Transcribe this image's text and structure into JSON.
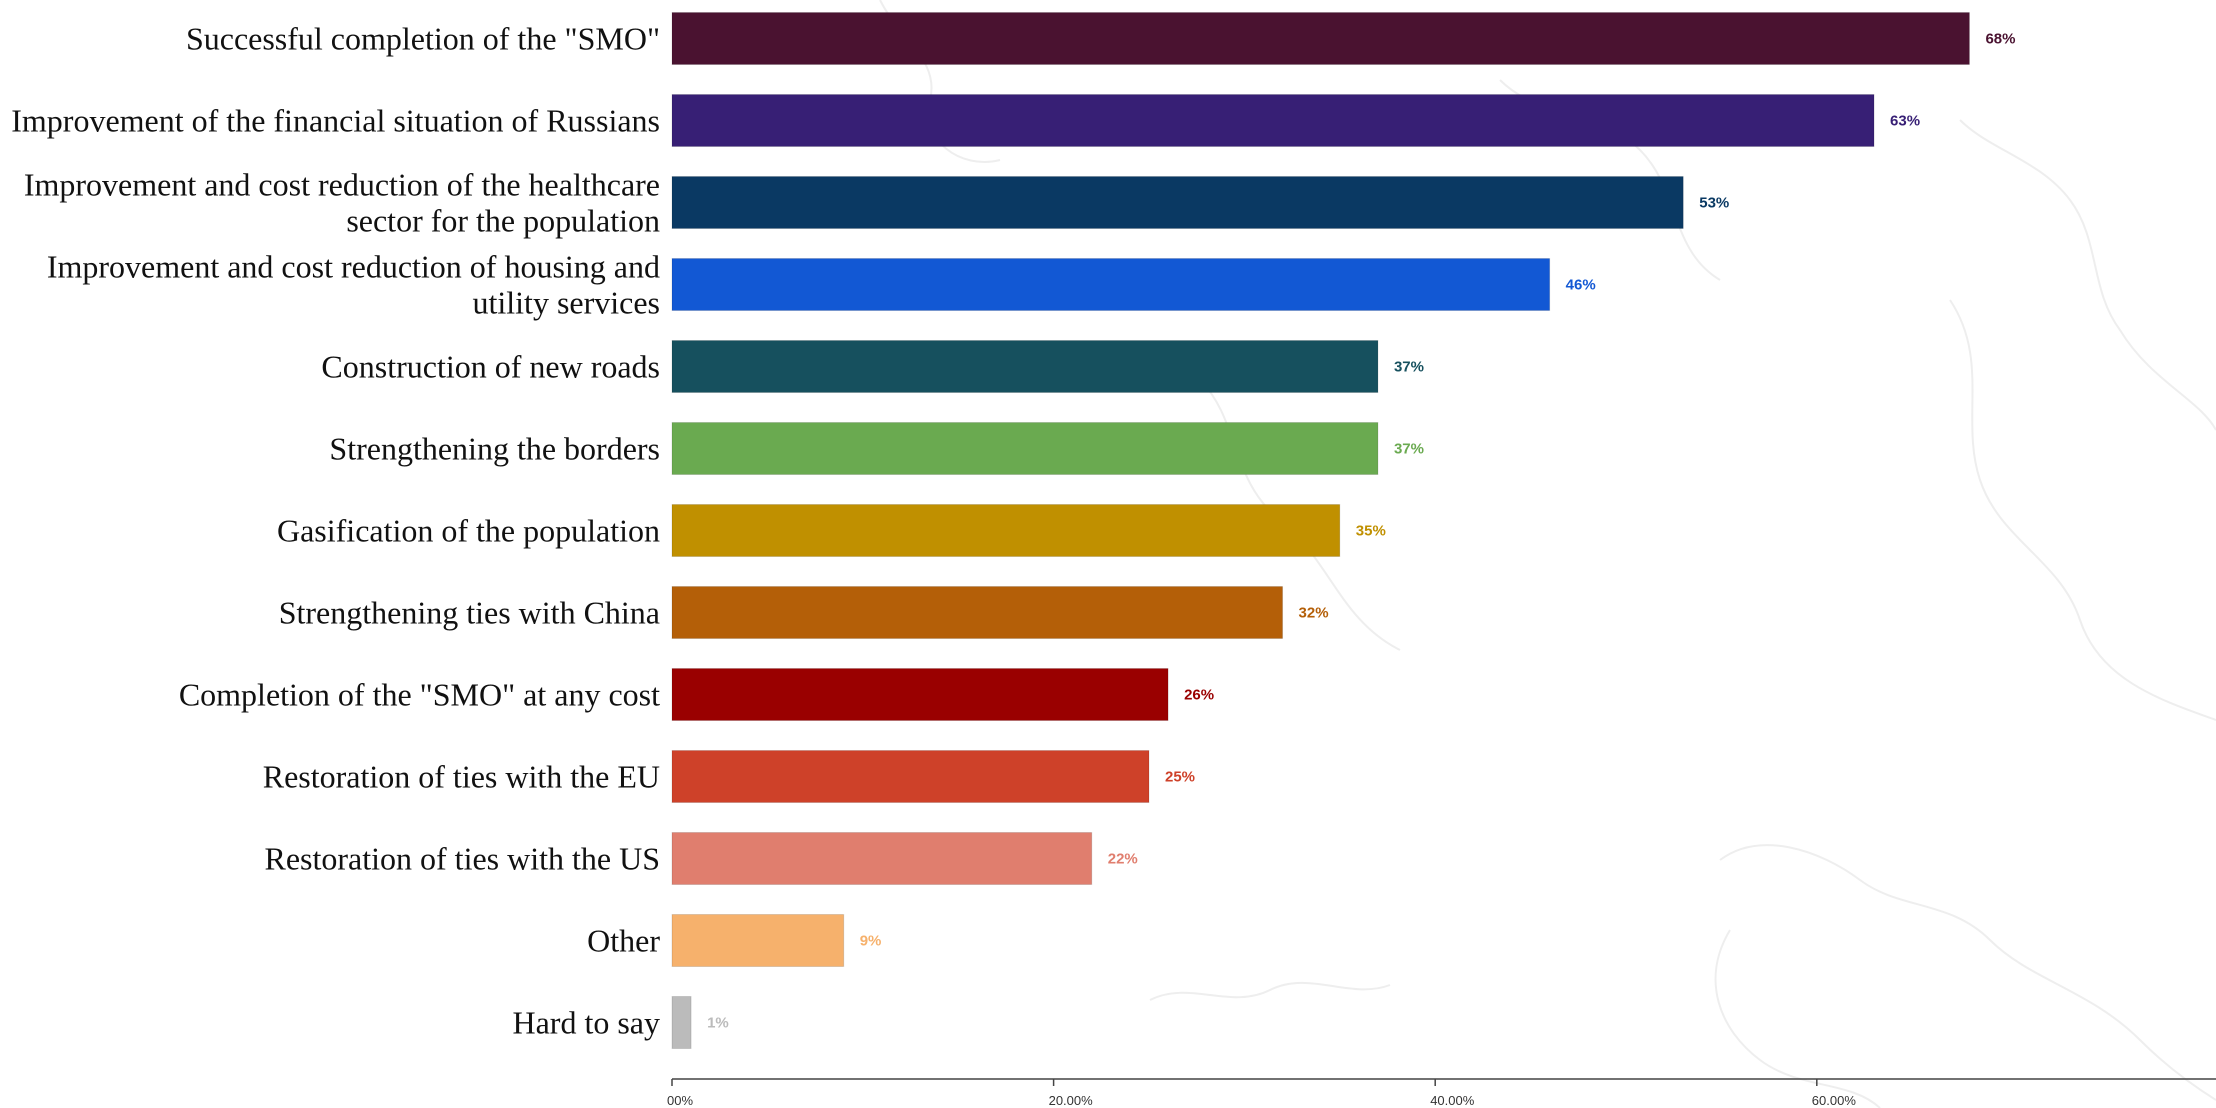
{
  "chart_data": {
    "type": "bar",
    "orientation": "horizontal",
    "title": "",
    "xlabel": "",
    "ylabel": "",
    "xlim": [
      0,
      75
    ],
    "grid": false,
    "categories": [
      "Successful completion of the \"SMO\"",
      "Improvement of the financial situation of Russians",
      "Improvement and cost reduction of the healthcare sector for the population",
      "Improvement and cost reduction of housing and utility services",
      "Construction of new roads",
      "Strengthening the borders",
      "Gasification of the population",
      "Strengthening ties with China",
      "Completion of the \"SMO\" at any cost",
      "Restoration of ties with the EU",
      "Restoration of ties with the US",
      "Other",
      "Hard to say"
    ],
    "category_lines": [
      [
        "Successful completion of the \"SMO\""
      ],
      [
        "Improvement of the financial situation of Russians"
      ],
      [
        "Improvement and cost reduction of the healthcare",
        "sector for the population"
      ],
      [
        "Improvement and cost reduction of housing and",
        "utility services"
      ],
      [
        "Construction of new roads"
      ],
      [
        "Strengthening the borders"
      ],
      [
        "Gasification of the population"
      ],
      [
        "Strengthening ties with China"
      ],
      [
        "Completion of the \"SMO\" at any cost"
      ],
      [
        "Restoration of ties with the EU"
      ],
      [
        "Restoration of ties with the US"
      ],
      [
        "Other"
      ],
      [
        "Hard to say"
      ]
    ],
    "values": [
      68,
      63,
      53,
      46,
      37,
      37,
      35,
      32,
      26,
      25,
      22,
      9,
      1
    ],
    "value_labels": [
      "68%",
      "63%",
      "53%",
      "46%",
      "37%",
      "37%",
      "35%",
      "32%",
      "26%",
      "25%",
      "22%",
      "9%",
      "1%"
    ],
    "colors": [
      "#4a1230",
      "#371f75",
      "#0a3963",
      "#1258d4",
      "#16505e",
      "#6aaa50",
      "#c09000",
      "#b45f08",
      "#9a0000",
      "#ce4129",
      "#e07e6e",
      "#f6b16c",
      "#bbbbbb"
    ],
    "x_ticks": [
      0,
      20,
      40,
      60
    ],
    "x_tick_labels": [
      "00%",
      "20.00%",
      "40.00%",
      "60.00%"
    ]
  }
}
